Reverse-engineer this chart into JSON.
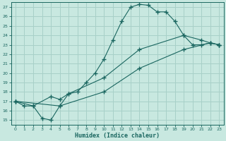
{
  "xlabel": "Humidex (Indice chaleur)",
  "bg_color": "#c8e8e0",
  "grid_color": "#a8d0c8",
  "line_color": "#1a6660",
  "xlim": [
    -0.5,
    23.5
  ],
  "ylim": [
    14.5,
    27.5
  ],
  "xticks": [
    0,
    1,
    2,
    3,
    4,
    5,
    6,
    7,
    8,
    9,
    10,
    11,
    12,
    13,
    14,
    15,
    16,
    17,
    18,
    19,
    20,
    21,
    22,
    23
  ],
  "yticks": [
    15,
    16,
    17,
    18,
    19,
    20,
    21,
    22,
    23,
    24,
    25,
    26,
    27
  ],
  "line1_x": [
    0,
    1,
    2,
    3,
    4,
    5,
    6,
    7,
    8,
    9,
    10,
    11,
    12,
    13,
    14,
    15,
    16,
    17,
    18,
    19,
    20,
    21,
    22,
    23
  ],
  "line1_y": [
    17.0,
    16.5,
    16.5,
    15.2,
    15.0,
    16.5,
    17.8,
    18.0,
    19.0,
    20.0,
    21.5,
    23.5,
    25.5,
    27.0,
    27.3,
    27.2,
    26.5,
    26.5,
    25.5,
    24.0,
    23.0,
    23.0,
    23.2,
    23.0
  ],
  "line2_x": [
    0,
    2,
    4,
    5,
    6,
    10,
    14,
    19,
    21,
    22,
    23
  ],
  "line2_y": [
    17.0,
    16.5,
    17.5,
    17.2,
    17.8,
    19.5,
    22.5,
    24.0,
    23.5,
    23.2,
    23.0
  ],
  "line3_x": [
    0,
    5,
    10,
    14,
    19,
    22,
    23
  ],
  "line3_y": [
    17.0,
    16.5,
    18.0,
    20.5,
    22.5,
    23.2,
    23.0
  ]
}
